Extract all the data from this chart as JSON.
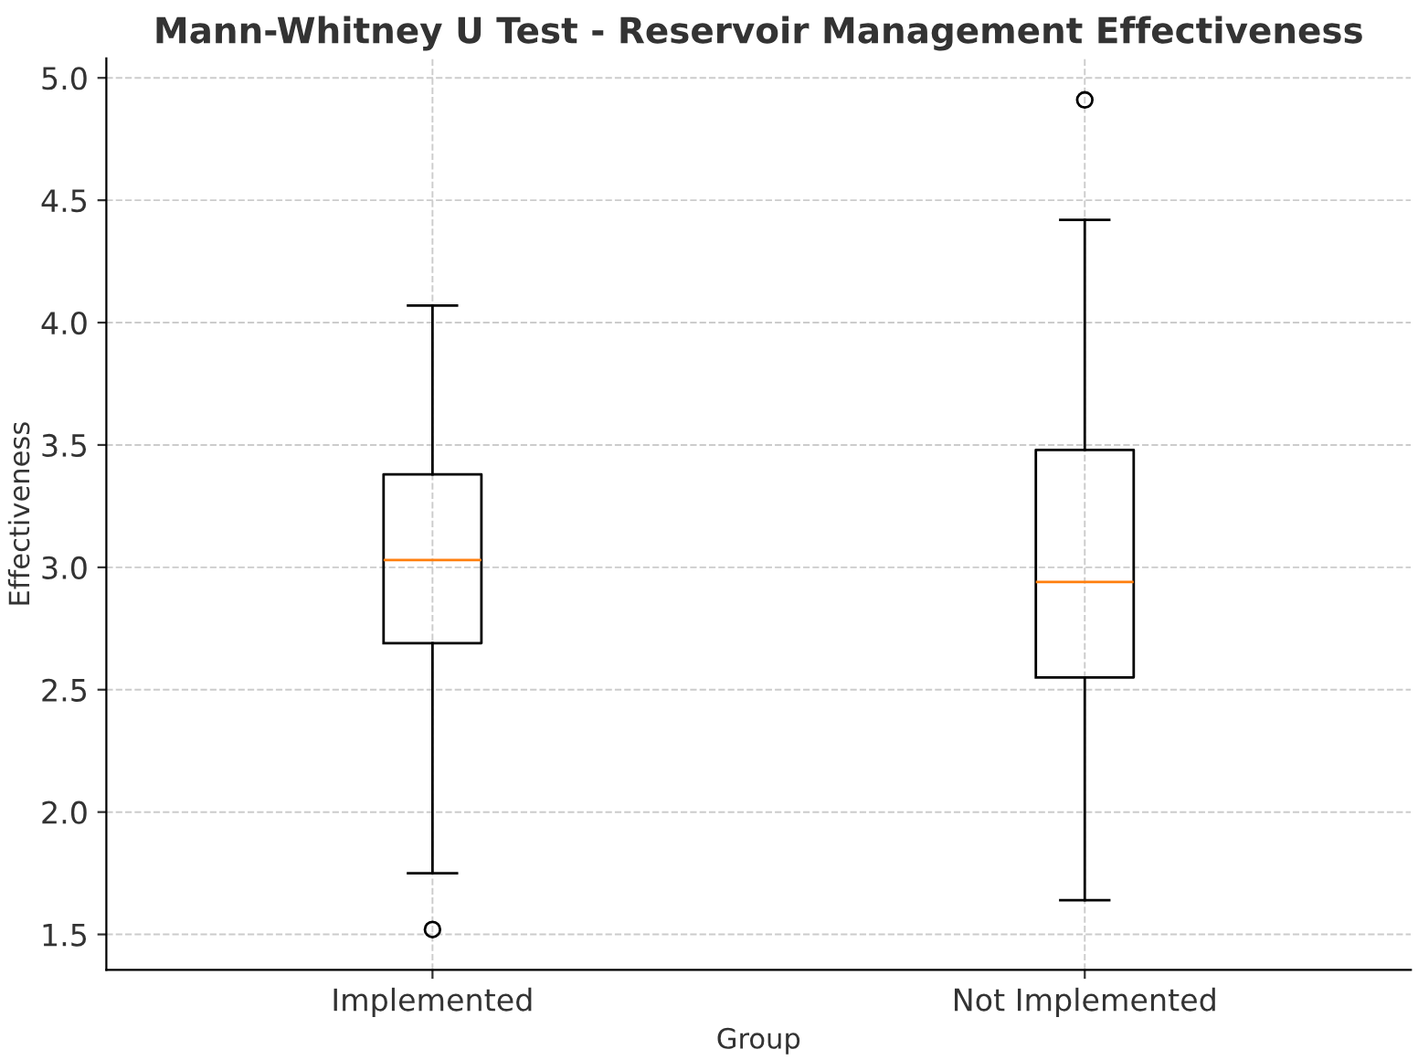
{
  "chart_data": {
    "type": "box",
    "title": "Mann-Whitney U Test - Reservoir Management Effectiveness",
    "xlabel": "Group",
    "ylabel": "Effectiveness",
    "categories": [
      "Implemented",
      "Not Implemented"
    ],
    "boxes": [
      {
        "low": 1.75,
        "q1": 2.69,
        "median": 3.03,
        "q3": 3.38,
        "high": 4.07,
        "outliers": [
          1.52
        ]
      },
      {
        "low": 1.64,
        "q1": 2.55,
        "median": 2.94,
        "q3": 3.48,
        "high": 4.42,
        "outliers": [
          4.91
        ]
      }
    ],
    "ylim": [
      1.355,
      5.08
    ],
    "yticks": [
      {
        "value": 1.5,
        "label": "1.5"
      },
      {
        "value": 2.0,
        "label": "2.0"
      },
      {
        "value": 2.5,
        "label": "2.5"
      },
      {
        "value": 3.0,
        "label": "3.0"
      },
      {
        "value": 3.5,
        "label": "3.5"
      },
      {
        "value": 4.0,
        "label": "4.0"
      },
      {
        "value": 4.5,
        "label": "4.5"
      },
      {
        "value": 5.0,
        "label": "5.0"
      }
    ],
    "grid": true
  }
}
